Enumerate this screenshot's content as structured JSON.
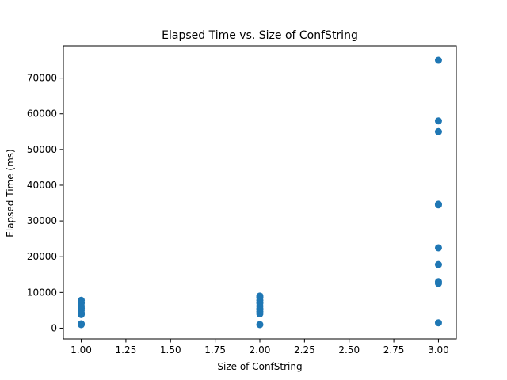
{
  "chart_data": {
    "type": "scatter",
    "title": "Elapsed Time vs. Size of ConfString",
    "xlabel": "Size of ConfString",
    "ylabel": "Elapsed Time (ms)",
    "xlim": [
      0.9,
      3.1
    ],
    "ylim": [
      -3000,
      79000
    ],
    "xticks": [
      1.0,
      1.25,
      1.5,
      1.75,
      2.0,
      2.25,
      2.5,
      2.75,
      3.0
    ],
    "xtick_labels": [
      "1.00",
      "1.25",
      "1.50",
      "1.75",
      "2.00",
      "2.25",
      "2.50",
      "2.75",
      "3.00"
    ],
    "yticks": [
      0,
      10000,
      20000,
      30000,
      40000,
      50000,
      60000,
      70000
    ],
    "ytick_labels": [
      "0",
      "10000",
      "20000",
      "30000",
      "40000",
      "50000",
      "60000",
      "70000"
    ],
    "grid": false,
    "marker_color": "#1f77b4",
    "series": [
      {
        "points": [
          {
            "x": 1,
            "y": 1000
          },
          {
            "x": 1,
            "y": 1200
          },
          {
            "x": 1,
            "y": 3800
          },
          {
            "x": 1,
            "y": 4200
          },
          {
            "x": 1,
            "y": 5000
          },
          {
            "x": 1,
            "y": 5600
          },
          {
            "x": 1,
            "y": 6200
          },
          {
            "x": 1,
            "y": 7000
          },
          {
            "x": 1,
            "y": 7800
          },
          {
            "x": 2,
            "y": 1000
          },
          {
            "x": 2,
            "y": 4000
          },
          {
            "x": 2,
            "y": 4600
          },
          {
            "x": 2,
            "y": 5400
          },
          {
            "x": 2,
            "y": 6200
          },
          {
            "x": 2,
            "y": 7000
          },
          {
            "x": 2,
            "y": 7800
          },
          {
            "x": 2,
            "y": 8600
          },
          {
            "x": 2,
            "y": 9000
          },
          {
            "x": 3,
            "y": 1500
          },
          {
            "x": 3,
            "y": 12500
          },
          {
            "x": 3,
            "y": 13000
          },
          {
            "x": 3,
            "y": 17800
          },
          {
            "x": 3,
            "y": 22500
          },
          {
            "x": 3,
            "y": 34500
          },
          {
            "x": 3,
            "y": 34700
          },
          {
            "x": 3,
            "y": 55000
          },
          {
            "x": 3,
            "y": 58000
          },
          {
            "x": 3,
            "y": 75000
          }
        ]
      }
    ]
  }
}
